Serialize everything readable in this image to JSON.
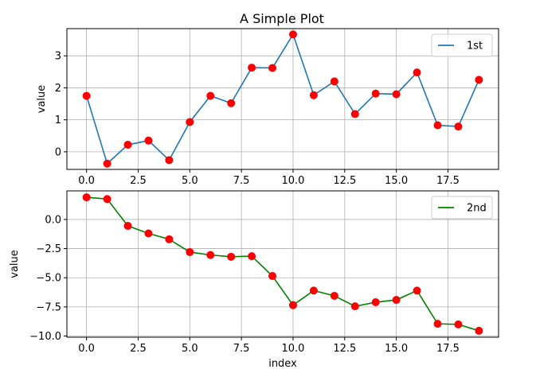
{
  "title": "A Simple Plot",
  "chart_data": [
    {
      "type": "line",
      "title": "A Simple Plot",
      "xlabel": "",
      "ylabel": "value",
      "xlim": [
        -0.95,
        19.95
      ],
      "ylim": [
        -0.55,
        3.85
      ],
      "xticks": [
        0.0,
        2.5,
        5.0,
        7.5,
        10.0,
        12.5,
        15.0,
        17.5
      ],
      "xtick_labels": [
        "0.0",
        "2.5",
        "5.0",
        "7.5",
        "10.0",
        "12.5",
        "15.0",
        "17.5"
      ],
      "yticks": [
        0,
        1,
        2,
        3
      ],
      "ytick_labels": [
        "0",
        "1",
        "2",
        "3"
      ],
      "grid": true,
      "legend_position": "top-right",
      "marker_color": "#ff0000",
      "series": [
        {
          "name": "1st",
          "color": "#1f77b4",
          "x": [
            0,
            1,
            2,
            3,
            4,
            5,
            6,
            7,
            8,
            9,
            10,
            11,
            12,
            13,
            14,
            15,
            16,
            17,
            18,
            19
          ],
          "values": [
            1.75,
            -0.37,
            0.22,
            0.35,
            -0.26,
            0.93,
            1.75,
            1.52,
            2.63,
            2.62,
            3.67,
            1.77,
            2.2,
            1.18,
            1.82,
            1.8,
            2.48,
            0.83,
            0.79,
            2.25
          ]
        }
      ]
    },
    {
      "type": "line",
      "title": "",
      "xlabel": "index",
      "ylabel": "value",
      "xlim": [
        -0.95,
        19.95
      ],
      "ylim": [
        -10.1,
        2.45
      ],
      "xticks": [
        0.0,
        2.5,
        5.0,
        7.5,
        10.0,
        12.5,
        15.0,
        17.5
      ],
      "xtick_labels": [
        "0.0",
        "2.5",
        "5.0",
        "7.5",
        "10.0",
        "12.5",
        "15.0",
        "17.5"
      ],
      "yticks": [
        0.0,
        -2.5,
        -5.0,
        -7.5,
        -10.0
      ],
      "ytick_labels": [
        "0.0",
        "−2.5",
        "−5.0",
        "−7.5",
        "−10.0"
      ],
      "grid": true,
      "legend_position": "top-right",
      "marker_color": "#ff0000",
      "series": [
        {
          "name": "2nd",
          "color": "#008000",
          "x": [
            0,
            1,
            2,
            3,
            4,
            5,
            6,
            7,
            8,
            9,
            10,
            11,
            12,
            13,
            14,
            15,
            16,
            17,
            18,
            19
          ],
          "values": [
            1.9,
            1.75,
            -0.55,
            -1.2,
            -1.7,
            -2.8,
            -3.05,
            -3.2,
            -3.15,
            -4.85,
            -7.35,
            -6.1,
            -6.55,
            -7.45,
            -7.1,
            -6.9,
            -6.1,
            -8.95,
            -9.0,
            -9.55
          ]
        }
      ]
    }
  ]
}
